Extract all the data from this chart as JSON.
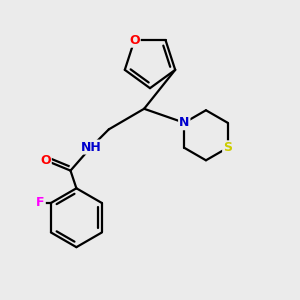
{
  "bg_color": "#ebebeb",
  "atom_colors": {
    "O": "#ff0000",
    "N": "#0000cd",
    "S": "#cccc00",
    "F": "#ff00ff",
    "C": "#000000",
    "H": "#808080"
  },
  "bond_color": "#000000",
  "bond_width": 1.6
}
